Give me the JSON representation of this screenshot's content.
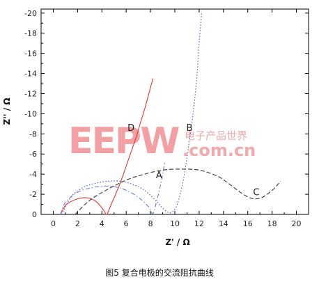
{
  "chart_data": {
    "type": "line",
    "title": "",
    "xlabel": "Z' / Ω",
    "ylabel": "Z'' / Ω",
    "xlim": [
      -1,
      21
    ],
    "ylim": [
      0,
      -20.4
    ],
    "xticks": [
      0,
      2,
      4,
      6,
      8,
      10,
      12,
      14,
      16,
      18,
      20
    ],
    "yticks": [
      0,
      -2,
      -4,
      -6,
      -8,
      -10,
      -12,
      -14,
      -16,
      -18,
      -20
    ],
    "xtick_labels": [
      "0",
      "2",
      "4",
      "6",
      "8",
      "10",
      "12",
      "14",
      "16",
      "18",
      "20"
    ],
    "ytick_labels": [
      "0",
      "-2",
      "-4",
      "-6",
      "-8",
      "-10",
      "-12",
      "-14",
      "-16",
      "-18",
      "-20"
    ],
    "grid": false,
    "legend": "none",
    "series": [
      {
        "name": "D",
        "color": "#e8332f",
        "style": "solid",
        "x": [
          0.6,
          1.0,
          1.5,
          2.0,
          2.5,
          3.0,
          3.5,
          3.9,
          4.2,
          4.4,
          4.7,
          5.2,
          5.6,
          6.0,
          6.4,
          6.8,
          7.2,
          7.6,
          8.0,
          8.2
        ],
        "y": [
          0,
          -0.9,
          -1.3,
          -1.55,
          -1.65,
          -1.6,
          -1.3,
          -0.8,
          -0.3,
          0,
          -0.8,
          -2.2,
          -3.4,
          -4.8,
          -6.2,
          -7.6,
          -9.2,
          -10.8,
          -12.6,
          -13.5
        ]
      },
      {
        "name": "A",
        "color": "#6b7bd6",
        "style": "dashdot",
        "x": [
          0.6,
          1.0,
          2.0,
          3.0,
          4.0,
          5.0,
          6.0,
          7.0,
          7.8,
          8.2,
          8.5,
          8.8,
          9.0,
          9.2
        ],
        "y": [
          0,
          -1.2,
          -2.2,
          -2.6,
          -2.8,
          -2.75,
          -2.4,
          -1.7,
          -0.8,
          -0.1,
          -1.3,
          -2.8,
          -4.0,
          -5.3
        ]
      },
      {
        "name": "B",
        "color": "#4c4fd0",
        "style": "dotted",
        "x": [
          0.7,
          1.5,
          2.5,
          3.5,
          4.5,
          5.5,
          6.5,
          7.5,
          8.5,
          9.2,
          9.7,
          10.2,
          10.7,
          11.1,
          11.5,
          11.8,
          12.0,
          12.2
        ],
        "y": [
          0,
          -1.8,
          -2.7,
          -3.1,
          -3.3,
          -3.3,
          -3.0,
          -2.4,
          -1.3,
          -0.4,
          -0.2,
          -1.0,
          -3.4,
          -6.5,
          -10.0,
          -13.5,
          -17.0,
          -20.0
        ]
      },
      {
        "name": "C",
        "color": "#333333",
        "style": "dashed",
        "x": [
          1.8,
          3.0,
          4.5,
          6.0,
          7.5,
          9.0,
          10.5,
          12.0,
          13.5,
          14.5,
          15.5,
          16.3,
          17.0,
          17.6,
          18.2,
          18.7
        ],
        "y": [
          0,
          -1.4,
          -2.5,
          -3.4,
          -4.0,
          -4.4,
          -4.5,
          -4.4,
          -3.8,
          -3.0,
          -2.1,
          -1.6,
          -1.6,
          -2.0,
          -2.6,
          -3.3
        ]
      }
    ],
    "curve_labels": [
      {
        "text": "D",
        "x": 6.4,
        "y": -8.3
      },
      {
        "text": "B",
        "x": 11.2,
        "y": -8.3
      },
      {
        "text": "A",
        "x": 8.7,
        "y": -3.6
      },
      {
        "text": "C",
        "x": 16.7,
        "y": -1.9
      }
    ]
  },
  "caption": "图5 复合电极的交流阻抗曲线",
  "watermark": {
    "letters": "EEPW",
    "chinese": "电子产品世界",
    "domain": ".com.cn",
    "color": "#e8535a"
  }
}
